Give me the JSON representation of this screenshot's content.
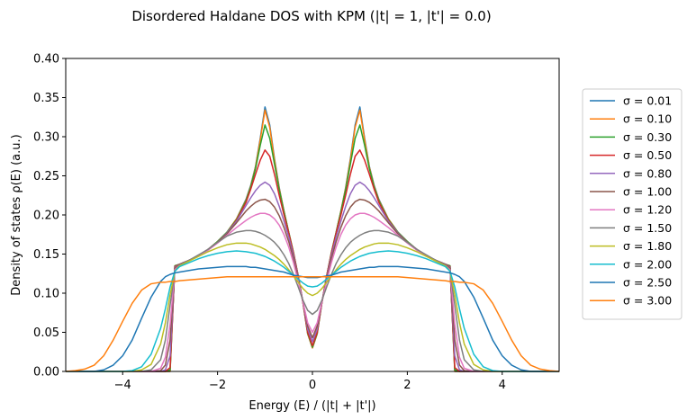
{
  "chart_data": {
    "type": "line",
    "title": "Disordered Haldane DOS with KPM (|t| = 1, |t'| = 0.0)",
    "xlabel": "Energy (E) / (|t| + |t'|)",
    "ylabel": "Density of states ρ(E) (a.u.)",
    "xlim": [
      -5.2,
      5.2
    ],
    "ylim": [
      0.0,
      0.4
    ],
    "xticks": [
      -4,
      -2,
      0,
      2,
      4
    ],
    "xtick_labels": [
      "−4",
      "−2",
      "0",
      "2",
      "4"
    ],
    "yticks": [
      0.0,
      0.05,
      0.1,
      0.15,
      0.2,
      0.25,
      0.3,
      0.35,
      0.4
    ],
    "ytick_labels": [
      "0.00",
      "0.05",
      "0.10",
      "0.15",
      "0.20",
      "0.25",
      "0.30",
      "0.35",
      "0.40"
    ],
    "grid": false,
    "legend_position": "right, outside plot",
    "x": [
      0,
      0.1,
      0.2,
      0.3,
      0.4,
      0.5,
      0.6,
      0.7,
      0.8,
      0.9,
      1.0,
      1.1,
      1.2,
      1.3,
      1.4,
      1.6,
      1.8,
      2.0,
      2.2,
      2.4,
      2.6,
      2.8,
      2.9,
      3.0,
      3.1,
      3.2,
      3.4,
      3.6,
      3.8,
      4.0,
      4.2,
      4.4,
      4.6,
      4.8,
      5.0,
      5.2
    ],
    "series": [
      {
        "name": "σ = 0.01",
        "color": "#1f77b4",
        "values": [
          0.03,
          0.048,
          0.088,
          0.122,
          0.152,
          0.178,
          0.205,
          0.235,
          0.272,
          0.315,
          0.338,
          0.298,
          0.262,
          0.238,
          0.22,
          0.195,
          0.178,
          0.166,
          0.156,
          0.148,
          0.142,
          0.137,
          0.135,
          0.0,
          0.0,
          0.0,
          0.0,
          0.0,
          0.0,
          0.0,
          0.0,
          0.0,
          0.0,
          0.0,
          0.0,
          0.0
        ]
      },
      {
        "name": "σ = 0.10",
        "color": "#ff7f0e",
        "values": [
          0.03,
          0.048,
          0.088,
          0.122,
          0.152,
          0.178,
          0.205,
          0.234,
          0.27,
          0.312,
          0.334,
          0.296,
          0.261,
          0.237,
          0.219,
          0.195,
          0.178,
          0.166,
          0.156,
          0.148,
          0.142,
          0.137,
          0.135,
          0.0,
          0.0,
          0.0,
          0.0,
          0.0,
          0.0,
          0.0,
          0.0,
          0.0,
          0.0,
          0.0,
          0.0,
          0.0
        ]
      },
      {
        "name": "σ = 0.30",
        "color": "#2ca02c",
        "values": [
          0.031,
          0.049,
          0.088,
          0.122,
          0.152,
          0.178,
          0.204,
          0.232,
          0.265,
          0.298,
          0.315,
          0.289,
          0.259,
          0.236,
          0.218,
          0.194,
          0.178,
          0.166,
          0.156,
          0.148,
          0.142,
          0.137,
          0.135,
          0.002,
          0.0,
          0.0,
          0.0,
          0.0,
          0.0,
          0.0,
          0.0,
          0.0,
          0.0,
          0.0,
          0.0,
          0.0
        ]
      },
      {
        "name": "σ = 0.50",
        "color": "#d62728",
        "values": [
          0.033,
          0.05,
          0.088,
          0.122,
          0.151,
          0.177,
          0.2,
          0.225,
          0.252,
          0.275,
          0.283,
          0.27,
          0.252,
          0.233,
          0.216,
          0.193,
          0.177,
          0.165,
          0.156,
          0.148,
          0.142,
          0.137,
          0.134,
          0.005,
          0.0,
          0.0,
          0.0,
          0.0,
          0.0,
          0.0,
          0.0,
          0.0,
          0.0,
          0.0,
          0.0,
          0.0
        ]
      },
      {
        "name": "σ = 0.80",
        "color": "#9467bd",
        "values": [
          0.038,
          0.054,
          0.089,
          0.12,
          0.148,
          0.172,
          0.192,
          0.211,
          0.227,
          0.238,
          0.242,
          0.238,
          0.231,
          0.222,
          0.212,
          0.192,
          0.177,
          0.165,
          0.156,
          0.148,
          0.142,
          0.137,
          0.133,
          0.02,
          0.002,
          0.0,
          0.0,
          0.0,
          0.0,
          0.0,
          0.0,
          0.0,
          0.0,
          0.0,
          0.0,
          0.0
        ]
      },
      {
        "name": "σ = 1.00",
        "color": "#8c564b",
        "values": [
          0.043,
          0.058,
          0.089,
          0.118,
          0.144,
          0.166,
          0.184,
          0.199,
          0.21,
          0.217,
          0.22,
          0.219,
          0.216,
          0.211,
          0.205,
          0.19,
          0.176,
          0.165,
          0.155,
          0.148,
          0.142,
          0.137,
          0.132,
          0.04,
          0.008,
          0.001,
          0.0,
          0.0,
          0.0,
          0.0,
          0.0,
          0.0,
          0.0,
          0.0,
          0.0,
          0.0
        ]
      },
      {
        "name": "σ = 1.20",
        "color": "#e377c2",
        "values": [
          0.05,
          0.062,
          0.089,
          0.115,
          0.139,
          0.159,
          0.175,
          0.187,
          0.195,
          0.2,
          0.202,
          0.202,
          0.2,
          0.197,
          0.193,
          0.184,
          0.174,
          0.164,
          0.155,
          0.148,
          0.142,
          0.136,
          0.13,
          0.06,
          0.018,
          0.004,
          0.0,
          0.0,
          0.0,
          0.0,
          0.0,
          0.0,
          0.0,
          0.0,
          0.0,
          0.0
        ]
      },
      {
        "name": "σ = 1.50",
        "color": "#7f7f7f",
        "values": [
          0.073,
          0.078,
          0.091,
          0.108,
          0.124,
          0.138,
          0.149,
          0.158,
          0.165,
          0.17,
          0.174,
          0.177,
          0.179,
          0.18,
          0.18,
          0.178,
          0.173,
          0.165,
          0.156,
          0.149,
          0.142,
          0.136,
          0.128,
          0.085,
          0.04,
          0.015,
          0.002,
          0.0,
          0.0,
          0.0,
          0.0,
          0.0,
          0.0,
          0.0,
          0.0,
          0.0
        ]
      },
      {
        "name": "σ = 1.80",
        "color": "#bcbd22",
        "values": [
          0.097,
          0.1,
          0.106,
          0.114,
          0.122,
          0.13,
          0.137,
          0.143,
          0.148,
          0.152,
          0.156,
          0.159,
          0.161,
          0.163,
          0.164,
          0.164,
          0.162,
          0.158,
          0.153,
          0.147,
          0.141,
          0.135,
          0.128,
          0.098,
          0.062,
          0.035,
          0.009,
          0.002,
          0.0,
          0.0,
          0.0,
          0.0,
          0.0,
          0.0,
          0.0,
          0.0
        ]
      },
      {
        "name": "σ = 2.00",
        "color": "#17becf",
        "values": [
          0.108,
          0.109,
          0.113,
          0.118,
          0.123,
          0.128,
          0.133,
          0.137,
          0.141,
          0.144,
          0.147,
          0.149,
          0.151,
          0.152,
          0.153,
          0.154,
          0.153,
          0.151,
          0.148,
          0.144,
          0.139,
          0.134,
          0.128,
          0.108,
          0.08,
          0.055,
          0.022,
          0.006,
          0.001,
          0.0,
          0.0,
          0.0,
          0.0,
          0.0,
          0.0,
          0.0
        ]
      },
      {
        "name": "σ = 2.50",
        "color": "#1f77b4",
        "values": [
          0.12,
          0.12,
          0.121,
          0.122,
          0.123,
          0.125,
          0.127,
          0.128,
          0.129,
          0.13,
          0.131,
          0.132,
          0.133,
          0.133,
          0.134,
          0.134,
          0.134,
          0.133,
          0.132,
          0.131,
          0.129,
          0.127,
          0.126,
          0.124,
          0.121,
          0.115,
          0.095,
          0.068,
          0.04,
          0.02,
          0.008,
          0.002,
          0.0,
          0.0,
          0.0,
          0.0
        ]
      },
      {
        "name": "σ = 3.00",
        "color": "#ff7f0e",
        "values": [
          0.121,
          0.121,
          0.121,
          0.121,
          0.121,
          0.121,
          0.121,
          0.121,
          0.121,
          0.121,
          0.121,
          0.121,
          0.121,
          0.121,
          0.121,
          0.121,
          0.121,
          0.12,
          0.119,
          0.118,
          0.117,
          0.116,
          0.115,
          0.115,
          0.114,
          0.114,
          0.112,
          0.104,
          0.087,
          0.064,
          0.04,
          0.02,
          0.008,
          0.003,
          0.001,
          0.0
        ]
      }
    ]
  }
}
